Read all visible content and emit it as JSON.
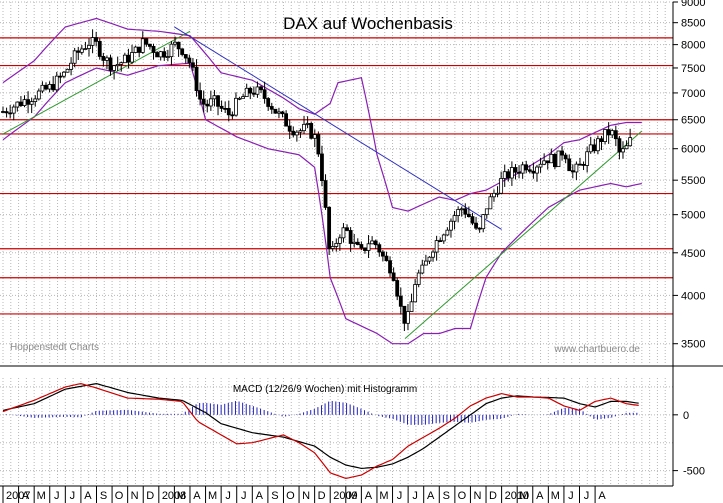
{
  "chart_data": [
    {
      "type": "candlestick",
      "title": "DAX auf Wochenbasis",
      "watermark_left": "Hoppenstedt Charts",
      "watermark_right": "www.chartbuero.de",
      "y_scale": "log",
      "ylim": [
        3300,
        9000
      ],
      "y_ticks": [
        3500,
        4000,
        4500,
        5000,
        5500,
        6000,
        6500,
        7000,
        7500,
        8000,
        8500,
        9000
      ],
      "x_month_labels": [
        "2007",
        "A",
        "M",
        "J",
        "J",
        "A",
        "S",
        "O",
        "N",
        "D",
        "2008",
        "M",
        "A",
        "M",
        "J",
        "J",
        "A",
        "S",
        "O",
        "N",
        "D",
        "2009",
        "M",
        "A",
        "M",
        "J",
        "J",
        "A",
        "S",
        "O",
        "N",
        "D",
        "2010",
        "M",
        "A",
        "M",
        "J",
        "J",
        "A"
      ],
      "x_range_months": [
        0,
        43
      ],
      "horizontal_resistance_levels": [
        8150,
        7550,
        6500,
        6250,
        5300,
        4550,
        4200,
        3800
      ],
      "close_series_points": [
        [
          0,
          6650
        ],
        [
          1,
          6800
        ],
        [
          2,
          6950
        ],
        [
          3,
          7100
        ],
        [
          3.5,
          7250
        ],
        [
          4,
          7400
        ],
        [
          4.5,
          7700
        ],
        [
          5,
          7900
        ],
        [
          5.5,
          8050
        ],
        [
          6,
          8000
        ],
        [
          6.5,
          7700
        ],
        [
          7,
          7550
        ],
        [
          7.5,
          7600
        ],
        [
          8,
          7700
        ],
        [
          8.5,
          7850
        ],
        [
          9,
          8050
        ],
        [
          9.5,
          7950
        ],
        [
          10,
          7800
        ],
        [
          10.5,
          7850
        ],
        [
          11,
          8000
        ],
        [
          11.5,
          7900
        ],
        [
          12,
          7600
        ],
        [
          12.3,
          7300
        ],
        [
          12.6,
          6900
        ],
        [
          13,
          6750
        ],
        [
          13.5,
          6850
        ],
        [
          14,
          6700
        ],
        [
          14.5,
          6600
        ],
        [
          15,
          6800
        ],
        [
          15.5,
          6950
        ],
        [
          16,
          7050
        ],
        [
          16.5,
          7000
        ],
        [
          17,
          6850
        ],
        [
          17.5,
          6650
        ],
        [
          18,
          6500
        ],
        [
          18.5,
          6350
        ],
        [
          19,
          6300
        ],
        [
          19.5,
          6350
        ],
        [
          20,
          6200
        ],
        [
          20.3,
          5900
        ],
        [
          20.6,
          5300
        ],
        [
          20.8,
          4800
        ],
        [
          21,
          4400
        ],
        [
          21.3,
          4600
        ],
        [
          21.6,
          4750
        ],
        [
          22,
          4800
        ],
        [
          22.5,
          4600
        ],
        [
          23,
          4500
        ],
        [
          23.5,
          4650
        ],
        [
          24,
          4600
        ],
        [
          24.5,
          4400
        ],
        [
          25,
          4300
        ],
        [
          25.3,
          4050
        ],
        [
          25.6,
          3800
        ],
        [
          25.9,
          3700
        ],
        [
          26.2,
          3900
        ],
        [
          26.5,
          4200
        ],
        [
          27,
          4300
        ],
        [
          27.5,
          4550
        ],
        [
          28,
          4700
        ],
        [
          28.5,
          4850
        ],
        [
          29,
          5000
        ],
        [
          29.5,
          5100
        ],
        [
          30,
          4950
        ],
        [
          30.5,
          4700
        ],
        [
          31,
          5100
        ],
        [
          31.5,
          5300
        ],
        [
          32,
          5500
        ],
        [
          32.5,
          5600
        ],
        [
          33,
          5650
        ],
        [
          33.5,
          5750
        ],
        [
          34,
          5700
        ],
        [
          34.5,
          5800
        ],
        [
          35,
          5850
        ],
        [
          35.5,
          5800
        ],
        [
          36,
          6000
        ],
        [
          36.5,
          5600
        ],
        [
          37,
          5700
        ],
        [
          37.5,
          5900
        ],
        [
          38,
          6050
        ],
        [
          38.5,
          6200
        ],
        [
          39,
          6300
        ],
        [
          39.3,
          6150
        ],
        [
          39.6,
          5900
        ],
        [
          40,
          6000
        ],
        [
          40.3,
          6150
        ]
      ],
      "bollinger_upper": [
        [
          0,
          7200
        ],
        [
          2,
          7650
        ],
        [
          4,
          8400
        ],
        [
          6,
          8600
        ],
        [
          8,
          8350
        ],
        [
          10,
          8300
        ],
        [
          12,
          8200
        ],
        [
          14,
          7400
        ],
        [
          16,
          7250
        ],
        [
          18,
          6900
        ],
        [
          19,
          6700
        ],
        [
          20,
          6600
        ],
        [
          21,
          6800
        ],
        [
          21.5,
          7200
        ],
        [
          23,
          7300
        ],
        [
          24,
          5900
        ],
        [
          25,
          5100
        ],
        [
          26,
          5050
        ],
        [
          27,
          5150
        ],
        [
          28,
          5250
        ],
        [
          29,
          5200
        ],
        [
          30,
          5300
        ],
        [
          31,
          5350
        ],
        [
          33,
          5600
        ],
        [
          35,
          5900
        ],
        [
          36,
          6100
        ],
        [
          37,
          6150
        ],
        [
          39,
          6400
        ],
        [
          40,
          6450
        ],
        [
          41,
          6450
        ]
      ],
      "bollinger_lower": [
        [
          0,
          6150
        ],
        [
          2,
          6550
        ],
        [
          4,
          7200
        ],
        [
          6,
          7500
        ],
        [
          8,
          7350
        ],
        [
          10,
          7550
        ],
        [
          12,
          7600
        ],
        [
          13,
          6500
        ],
        [
          15,
          6200
        ],
        [
          17,
          6000
        ],
        [
          19,
          5900
        ],
        [
          20,
          5700
        ],
        [
          21,
          4200
        ],
        [
          22,
          3750
        ],
        [
          24,
          3600
        ],
        [
          25,
          3500
        ],
        [
          26,
          3500
        ],
        [
          27,
          3600
        ],
        [
          28,
          3600
        ],
        [
          29,
          3650
        ],
        [
          30,
          3650
        ],
        [
          31,
          4200
        ],
        [
          32,
          4500
        ],
        [
          33,
          4700
        ],
        [
          35,
          5100
        ],
        [
          37,
          5350
        ],
        [
          39,
          5450
        ],
        [
          40,
          5400
        ],
        [
          41,
          5450
        ]
      ],
      "trendlines": [
        {
          "color": "#2f9a2f",
          "from": [
            0,
            6250
          ],
          "to": [
            12,
            8300
          ]
        },
        {
          "color": "#2f9a2f",
          "from": [
            25.8,
            3550
          ],
          "to": [
            41,
            6300
          ]
        },
        {
          "color": "#3030c0",
          "from": [
            11,
            8400
          ],
          "to": [
            32,
            4800
          ]
        }
      ]
    },
    {
      "type": "line",
      "title": "MACD (12/26/9 Wochen) mit Histogramm",
      "ylim": [
        -620,
        330
      ],
      "y_ticks": [
        -500,
        0
      ],
      "series": [
        {
          "color": "#000000",
          "values": [
            [
              0,
              40
            ],
            [
              2,
              100
            ],
            [
              4,
              230
            ],
            [
              6,
              280
            ],
            [
              8,
              200
            ],
            [
              10,
              150
            ],
            [
              11.5,
              130
            ],
            [
              13,
              20
            ],
            [
              14,
              -80
            ],
            [
              16,
              -160
            ],
            [
              18,
              -200
            ],
            [
              20,
              -280
            ],
            [
              21,
              -380
            ],
            [
              22,
              -450
            ],
            [
              23,
              -480
            ],
            [
              24,
              -470
            ],
            [
              25,
              -440
            ],
            [
              26,
              -380
            ],
            [
              27,
              -300
            ],
            [
              28,
              -200
            ],
            [
              29,
              -100
            ],
            [
              30,
              0
            ],
            [
              31,
              100
            ],
            [
              32,
              150
            ],
            [
              33,
              170
            ],
            [
              34,
              160
            ],
            [
              36,
              150
            ],
            [
              37,
              100
            ],
            [
              38,
              70
            ],
            [
              39,
              120
            ],
            [
              40,
              120
            ],
            [
              41,
              100
            ]
          ]
        },
        {
          "color": "#cc0000",
          "values": [
            [
              0,
              30
            ],
            [
              2,
              130
            ],
            [
              4,
              250
            ],
            [
              5,
              280
            ],
            [
              6,
              240
            ],
            [
              8,
              150
            ],
            [
              10,
              140
            ],
            [
              11.5,
              120
            ],
            [
              12.5,
              -60
            ],
            [
              14,
              -180
            ],
            [
              15,
              -260
            ],
            [
              16,
              -250
            ],
            [
              18,
              -180
            ],
            [
              19,
              -250
            ],
            [
              20,
              -340
            ],
            [
              21,
              -520
            ],
            [
              22,
              -570
            ],
            [
              23,
              -540
            ],
            [
              24,
              -460
            ],
            [
              25,
              -400
            ],
            [
              26,
              -280
            ],
            [
              27,
              -200
            ],
            [
              28,
              -120
            ],
            [
              29,
              -30
            ],
            [
              30,
              80
            ],
            [
              31,
              150
            ],
            [
              32,
              190
            ],
            [
              33,
              160
            ],
            [
              34,
              160
            ],
            [
              35,
              150
            ],
            [
              36,
              80
            ],
            [
              37,
              40
            ],
            [
              38,
              120
            ],
            [
              39,
              150
            ],
            [
              40,
              100
            ],
            [
              41,
              80
            ]
          ]
        }
      ],
      "histogram_color": "#2020c0"
    }
  ]
}
